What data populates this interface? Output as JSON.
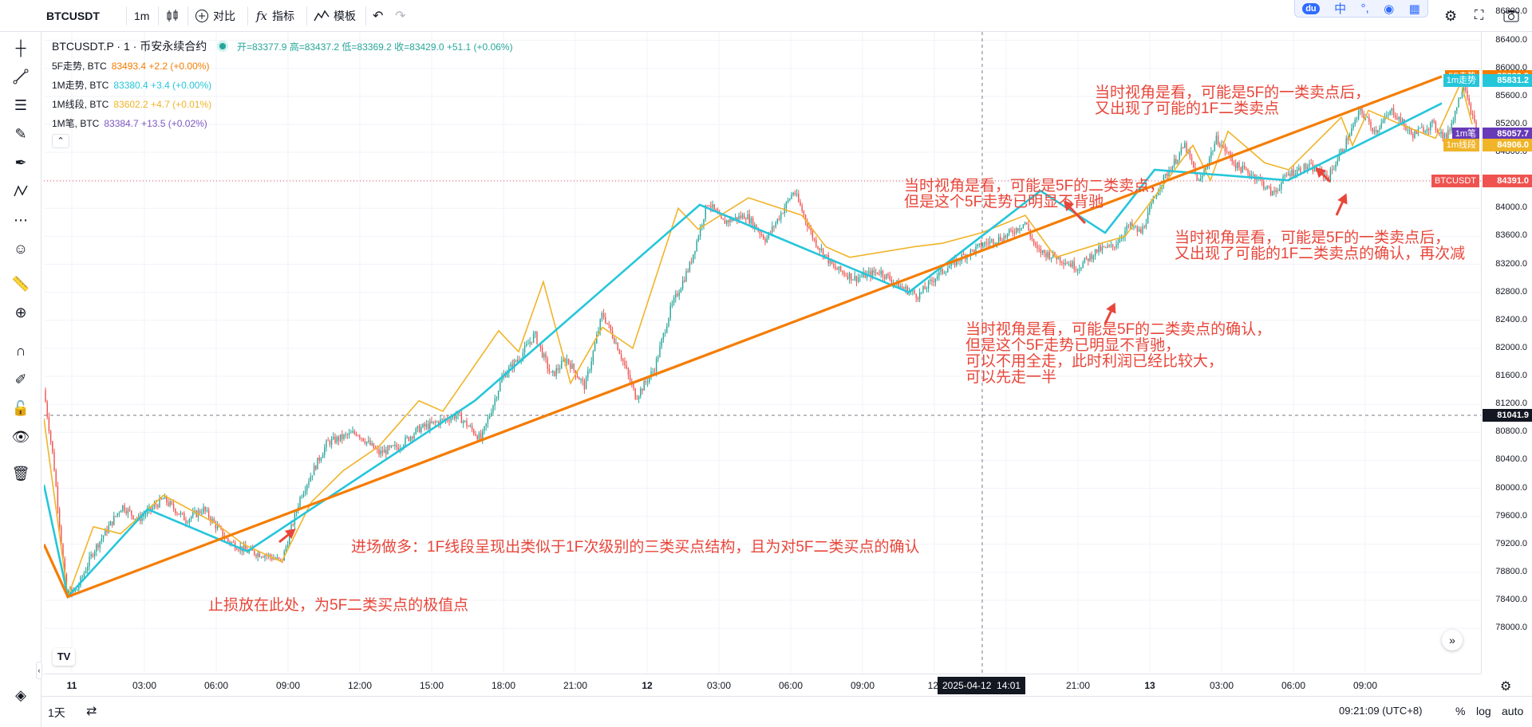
{
  "toolbar": {
    "symbol": "BTCUSDT",
    "interval": "1m",
    "compare": "对比",
    "indicators": "指标",
    "templates": "模板"
  },
  "legend": {
    "title": "BTCUSDT.P · 1 · 币安永续合约",
    "ohlc": "开=83377.9 高=83437.2 低=83369.2 收=83429.0 +51.1 (+0.06%)",
    "rows": [
      {
        "name": "5F走势, BTC",
        "value": "83493.4 +2.2 (+0.00%)",
        "color": "#f57c00"
      },
      {
        "name": "1M走势, BTC",
        "value": "83380.4 +3.4 (+0.00%)",
        "color": "#26c6da"
      },
      {
        "name": "1M线段, BTC",
        "value": "83602.2 +4.7 (+0.01%)",
        "color": "#f0b429"
      },
      {
        "name": "1M笔, BTC",
        "value": "83384.7 +13.5 (+0.02%)",
        "color": "#7e57c2"
      }
    ]
  },
  "price_scale": {
    "labels": [
      "86800.0",
      "86400.0",
      "86000.0",
      "85600.0",
      "85200.0",
      "84800.0",
      "84400.0",
      "84000.0",
      "83600.0",
      "83200.0",
      "82800.0",
      "82400.0",
      "82000.0",
      "81600.0",
      "81200.0",
      "80800.0",
      "80400.0",
      "80000.0",
      "79600.0",
      "79200.0",
      "78800.0",
      "78400.0",
      "78000.0"
    ],
    "tags": [
      {
        "label": "5F走势",
        "value": "85883.5",
        "color": "#f57c00"
      },
      {
        "label": "1m走势",
        "value": "85831.2",
        "color": "#26c6da"
      },
      {
        "label": "",
        "value": "85066.0",
        "color": "#26a69a"
      },
      {
        "label": "1m笔",
        "value": "85057.7",
        "color": "#673ab7"
      },
      {
        "label": "1m线段",
        "value": "84906.0",
        "color": "#f0b429"
      },
      {
        "label": "BTCUSDT",
        "value": "84391.0",
        "color": "#ef5350"
      },
      {
        "label": "",
        "value": "81041.9",
        "color": "#131722"
      }
    ]
  },
  "time_scale": {
    "labels": [
      "11",
      "03:00",
      "06:00",
      "09:00",
      "12:00",
      "15:00",
      "18:00",
      "21:00",
      "12",
      "03:00",
      "06:00",
      "09:00",
      "12:",
      "18:00",
      "21:00",
      "13",
      "03:00",
      "06:00",
      "09:00"
    ],
    "crosshair": "2025-04-12  14:01"
  },
  "annotations": [
    "当时视角是看，可能是5F的一类卖点后，\n又出现了可能的1F二类卖点",
    "当时视角是看，可能是5F的二类卖点，\n但是这个5F走势已明显不背驰",
    "当时视角是看，可能是5F的一类卖点后，\n又出现了可能的1F二类卖点的确认，再次减",
    "当时视角是看，可能是5F的二类卖点的确认，\n但是这个5F走势已明显不背驰，\n可以不用全走，此时利润已经比较大，\n可以先走一半",
    "进场做多：1F线段呈现出类似于1F次级别的三类买点结构，且为对5F二类买点的确认",
    "止损放在此处，为5F二类买点的极值点"
  ],
  "bottom": {
    "range": "1天",
    "clock": "09:21:09 (UTC+8)",
    "percent": "%",
    "log": "log",
    "auto": "auto"
  },
  "colors": {
    "trend5f": "#f57c00",
    "trend1m": "#26c6da",
    "segment1m": "#f0b429",
    "bi1m": "#7e57c2",
    "up": "#26a69a",
    "down": "#ef5350",
    "annotation": "#e8463a"
  }
}
